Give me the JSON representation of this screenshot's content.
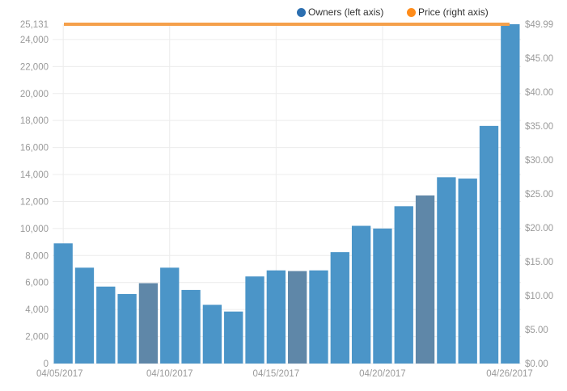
{
  "colors": {
    "owners": "#4b95c8",
    "owners_highlight": "#5f87a8",
    "price": "#f5a04b",
    "legend_owners": "#2c6fb0",
    "legend_price": "#ff8c1a",
    "grid": "#ececec",
    "axis_text": "#9a9a9a"
  },
  "legend": {
    "owners_label": "Owners (left axis)",
    "price_label": "Price (right axis)"
  },
  "chart_data": {
    "type": "bar",
    "grid": true,
    "legend_position": "top-right",
    "categories": [
      "04/05/2017",
      "04/06/2017",
      "04/07/2017",
      "04/08/2017",
      "04/09/2017",
      "04/10/2017",
      "04/11/2017",
      "04/12/2017",
      "04/13/2017",
      "04/14/2017",
      "04/15/2017",
      "04/16/2017",
      "04/17/2017",
      "04/18/2017",
      "04/19/2017",
      "04/20/2017",
      "04/21/2017",
      "04/22/2017",
      "04/23/2017",
      "04/24/2017",
      "04/25/2017",
      "04/26/2017"
    ],
    "x_tick_labels": [
      "04/05/2017",
      "04/10/2017",
      "04/15/2017",
      "04/20/2017",
      "04/26/2017"
    ],
    "series": [
      {
        "name": "Owners (left axis)",
        "axis": "left",
        "type": "bar",
        "values": [
          8900,
          7100,
          5700,
          5150,
          5950,
          7100,
          5450,
          4350,
          3850,
          6450,
          6900,
          6850,
          6900,
          8250,
          10200,
          10000,
          11650,
          12450,
          13800,
          13700,
          17600,
          25131
        ],
        "highlighted_indices": [
          4,
          11,
          17
        ]
      },
      {
        "name": "Price (right axis)",
        "axis": "right",
        "type": "line",
        "values": [
          49.99,
          49.99,
          49.99,
          49.99,
          49.99,
          49.99,
          49.99,
          49.99,
          49.99,
          49.99,
          49.99,
          49.99,
          49.99,
          49.99,
          49.99,
          49.99,
          49.99,
          49.99,
          49.99,
          49.99,
          49.99,
          49.99
        ]
      }
    ],
    "left_axis": {
      "ylim": [
        0,
        25131
      ],
      "ticks": [
        0,
        2000,
        4000,
        6000,
        8000,
        10000,
        12000,
        14000,
        16000,
        18000,
        20000,
        22000,
        24000
      ],
      "tick_labels": [
        "0",
        "2,000",
        "4,000",
        "6,000",
        "8,000",
        "10,000",
        "12,000",
        "14,000",
        "16,000",
        "18,000",
        "20,000",
        "22,000",
        "24,000"
      ],
      "max_label": "25,131"
    },
    "right_axis": {
      "ylim": [
        0,
        49.99
      ],
      "ticks": [
        0,
        5,
        10,
        15,
        20,
        25,
        30,
        35,
        40,
        45,
        49.99
      ],
      "tick_labels": [
        "$0.00",
        "$5.00",
        "$10.00",
        "$15.00",
        "$20.00",
        "$25.00",
        "$30.00",
        "$35.00",
        "$40.00",
        "$45.00",
        "$49.99"
      ]
    }
  }
}
